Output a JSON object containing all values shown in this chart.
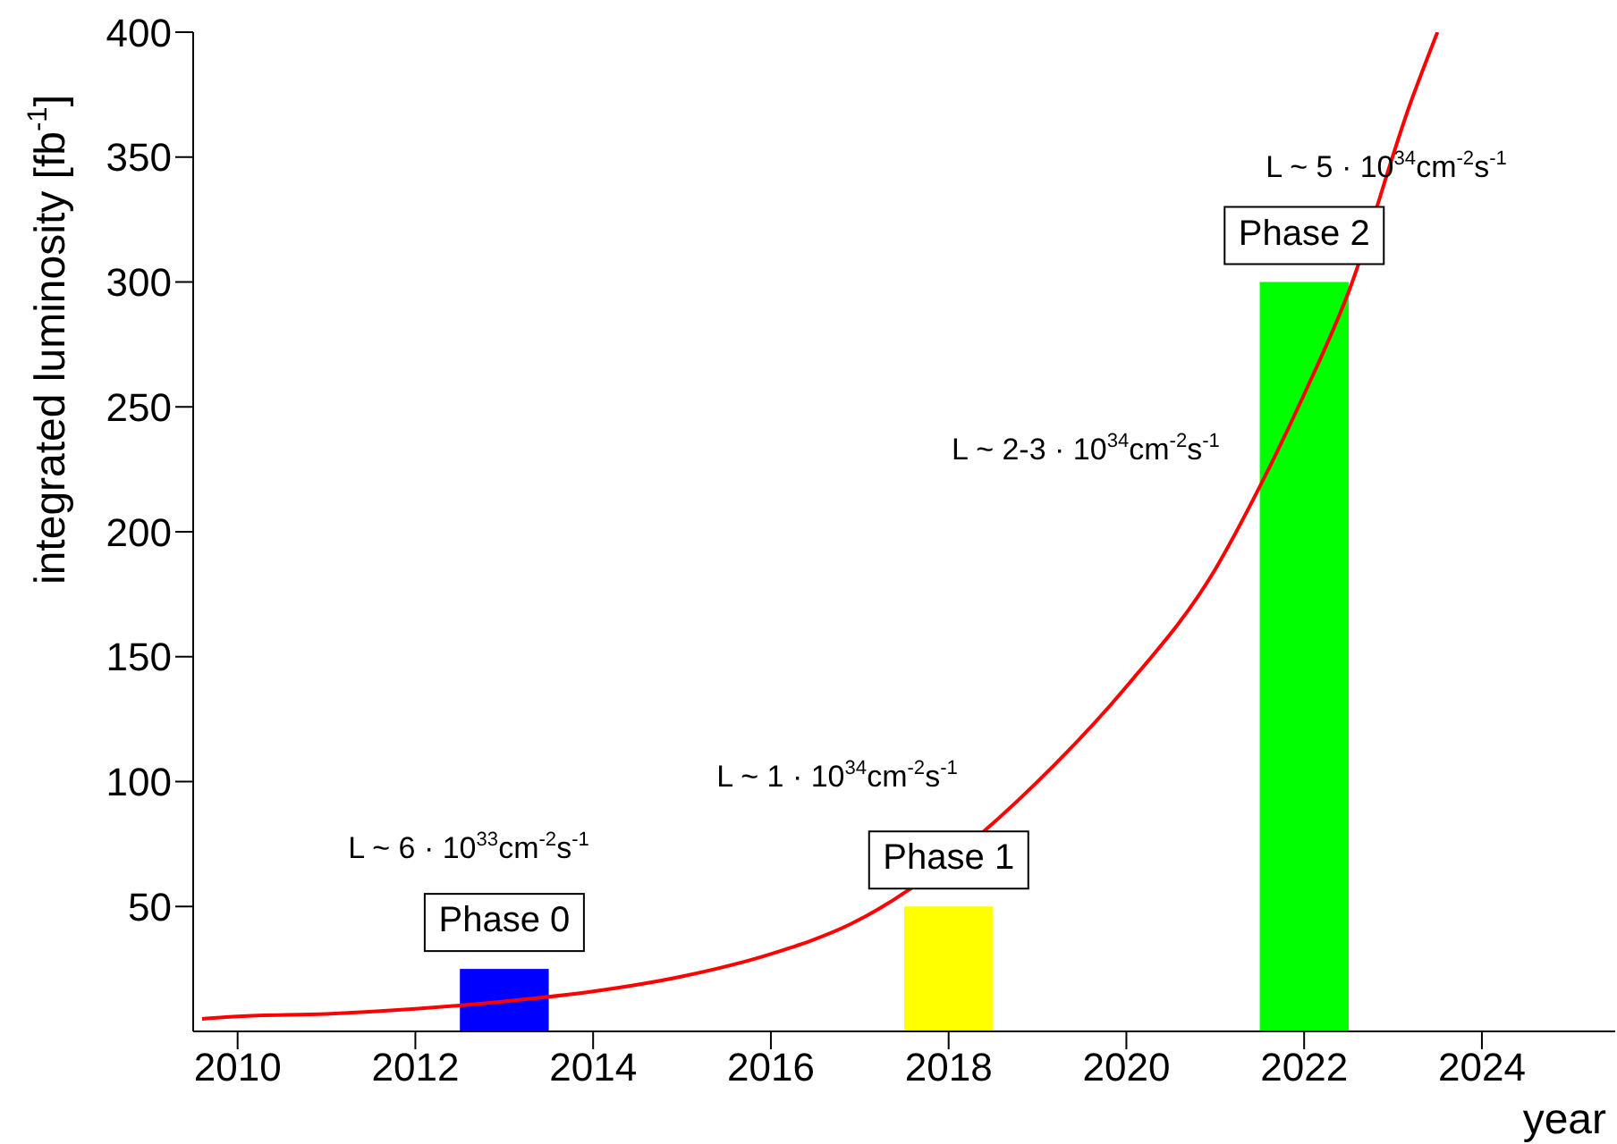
{
  "chart_data": {
    "type": "bar",
    "xlabel": "year",
    "ylabel": "integrated luminosity [fb$^{-1}$]",
    "xlim": [
      2009.5,
      2025.5
    ],
    "xticks": [
      2010,
      2012,
      2014,
      2016,
      2018,
      2020,
      2022,
      2024
    ],
    "ylim": [
      0,
      400
    ],
    "yticks": [
      50,
      100,
      150,
      200,
      250,
      300,
      350,
      400
    ],
    "grid": false,
    "legend": false,
    "series": [
      {
        "x": [
          2013,
          2018,
          2022
        ],
        "values": [
          25,
          50,
          300
        ],
        "colors": [
          "#0000ff",
          "#ffff00",
          "#00ff00"
        ],
        "value_labels": [
          "Phase 0",
          "Phase 1",
          "Phase 2"
        ]
      },
      {
        "type": "line",
        "color": "#ff0000",
        "marker": "none",
        "x": [
          2009.6,
          2010,
          2011,
          2012,
          2013,
          2014,
          2015,
          2016,
          2016.9,
          2019.2,
          2020,
          2021,
          2021.5,
          2022,
          2022.5,
          2023.2,
          2023.5
        ],
        "values": [
          5,
          6,
          7,
          9,
          12,
          16,
          22,
          31,
          43,
          107,
          138,
          185,
          218,
          255,
          296,
          372,
          400
        ]
      }
    ],
    "annotations": [
      "L ~ 6 · 10$^{33}$cm$^{-2}$s$^{-1}$",
      "L ~ 1 · 10$^{34}$cm$^{-2}$s$^{-1}$",
      "L ~ 2-3 · 10$^{34}$cm$^{-2}$s$^{-1}$",
      "L ~ 5 · 10$^{34}$cm$^{-2}$s$^{-1}$"
    ]
  }
}
